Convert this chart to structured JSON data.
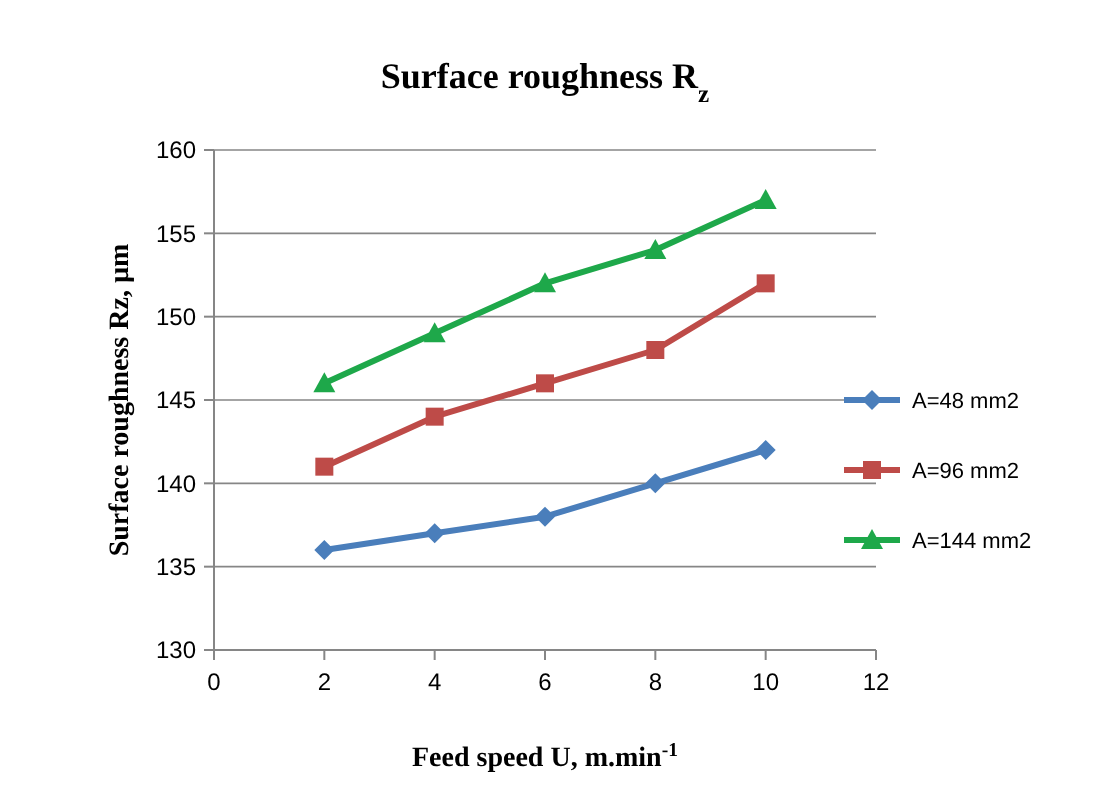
{
  "chart_data": {
    "type": "line",
    "title": "Surface roughness R$_{z}$",
    "xlabel": "Feed speed U, m.min$^{-1}$",
    "ylabel": "Surface roughness Rz, µm",
    "x": [
      2,
      4,
      6,
      8,
      10
    ],
    "series": [
      {
        "name": "A=48 mm2",
        "color": "#4a7ebb",
        "marker": "diamond",
        "values": [
          136,
          137,
          138,
          140,
          142
        ]
      },
      {
        "name": "A=96 mm2",
        "color": "#be4b48",
        "marker": "square",
        "values": [
          141,
          144,
          146,
          148,
          152
        ]
      },
      {
        "name": "A=144 mm2",
        "color": "#1ea84a",
        "marker": "triangle",
        "values": [
          146,
          149,
          152,
          154,
          157
        ]
      }
    ],
    "xlim": [
      0,
      12
    ],
    "xticks": [
      0,
      2,
      4,
      6,
      8,
      10,
      12
    ],
    "ylim": [
      130,
      160
    ],
    "yticks": [
      130,
      135,
      140,
      145,
      150,
      155,
      160
    ],
    "grid": "y",
    "legend": "right",
    "line_style": "solid"
  }
}
